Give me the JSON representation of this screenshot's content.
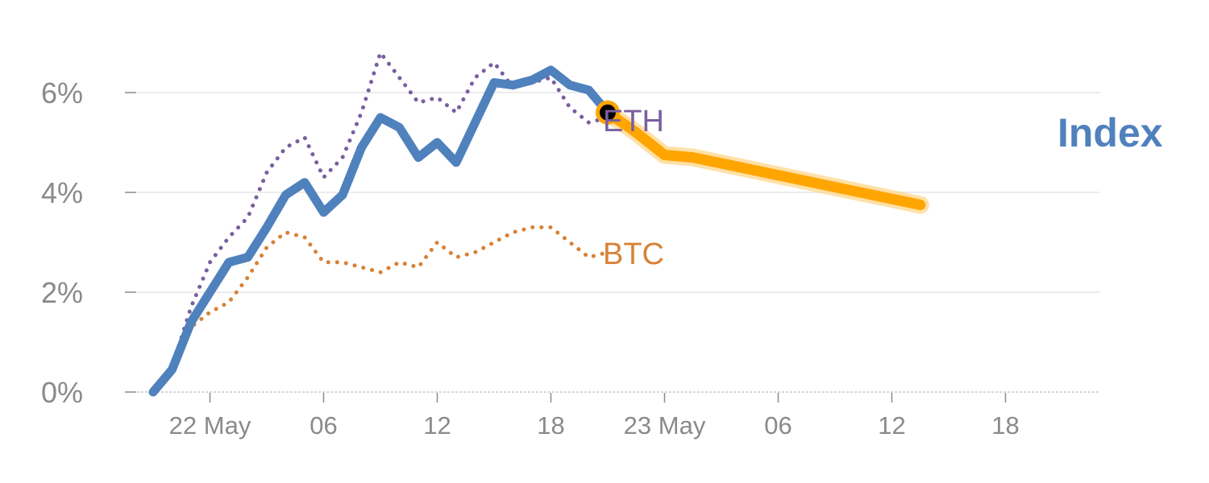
{
  "chart_data": {
    "type": "line",
    "x_ticks": [
      "22 May",
      "06",
      "12",
      "18",
      "23 May",
      "06",
      "12",
      "18"
    ],
    "y_ticks": [
      "0%",
      "2%",
      "4%",
      "6%"
    ],
    "ylim": [
      0,
      7
    ],
    "grid": true,
    "series": [
      {
        "name": "ETH",
        "style": "dotted",
        "color": "#7a5ea0",
        "values": [
          0.0,
          0.5,
          1.7,
          2.6,
          3.1,
          3.5,
          4.4,
          4.9,
          5.1,
          4.3,
          4.7,
          5.6,
          6.8,
          6.3,
          5.8,
          5.9,
          5.6,
          6.3,
          6.6,
          6.1,
          6.2,
          6.3,
          5.7,
          5.4,
          5.5
        ]
      },
      {
        "name": "BTC",
        "style": "dotted",
        "color": "#d88236",
        "values": [
          0.0,
          0.4,
          1.3,
          1.6,
          1.8,
          2.3,
          2.9,
          3.2,
          3.1,
          2.6,
          2.6,
          2.5,
          2.4,
          2.6,
          2.5,
          3.0,
          2.7,
          2.8,
          3.0,
          3.2,
          3.3,
          3.3,
          3.0,
          2.7,
          2.8
        ]
      },
      {
        "name": "Index",
        "style": "solid",
        "color": "#4f81bd",
        "values": [
          0.0,
          0.45,
          1.4,
          2.0,
          2.6,
          2.7,
          3.3,
          3.95,
          4.2,
          3.6,
          3.95,
          4.9,
          5.5,
          5.3,
          4.7,
          5.0,
          4.6,
          5.4,
          6.2,
          6.15,
          6.25,
          6.45,
          6.15,
          6.05,
          5.6
        ]
      }
    ],
    "forecast": {
      "color": "#ffa500",
      "x": [
        24,
        25.5,
        27,
        28.5,
        40.5
      ],
      "values": [
        5.6,
        5.2,
        4.75,
        4.7,
        3.75
      ]
    },
    "marker": {
      "x": 24,
      "value": 5.6,
      "fill": "#000000",
      "ring": "#ffa500"
    },
    "labels": {
      "eth": "ETH",
      "btc": "BTC",
      "index": "Index"
    }
  }
}
